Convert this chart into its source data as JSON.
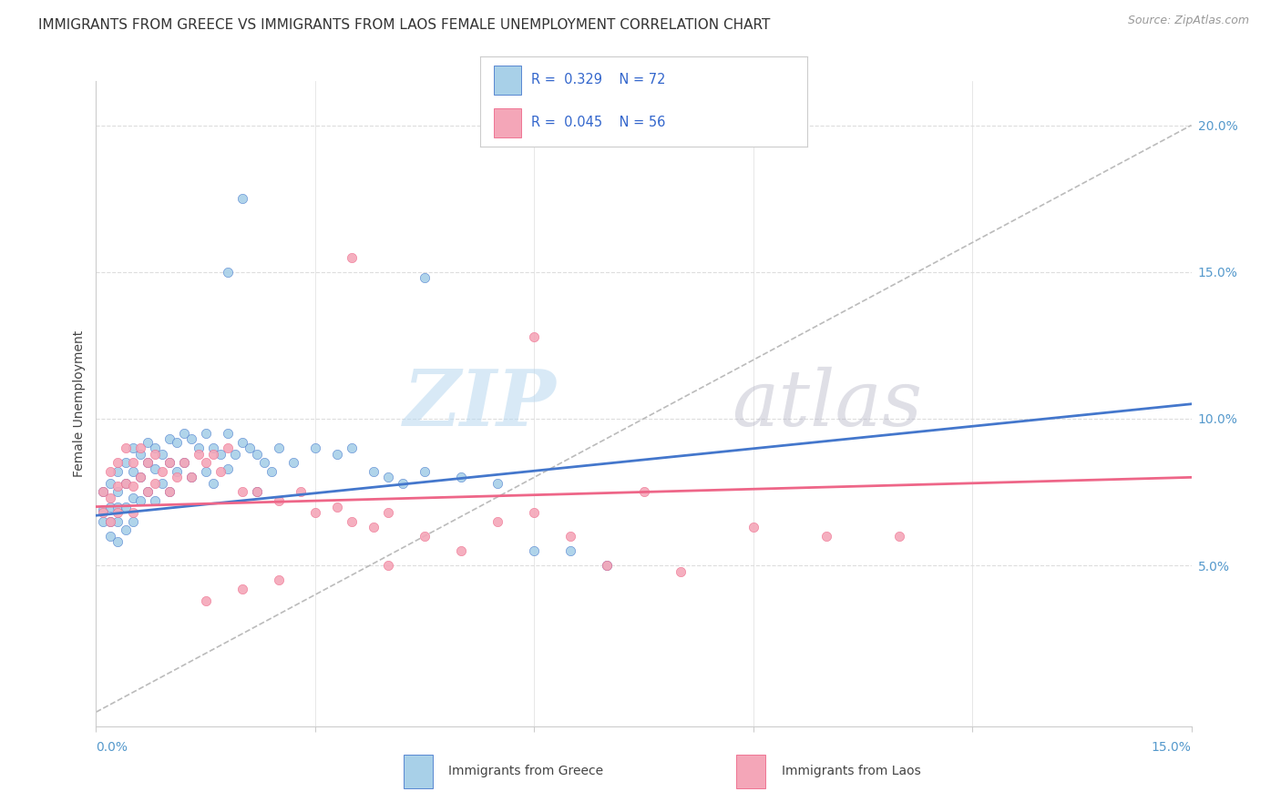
{
  "title": "IMMIGRANTS FROM GREECE VS IMMIGRANTS FROM LAOS FEMALE UNEMPLOYMENT CORRELATION CHART",
  "source": "Source: ZipAtlas.com",
  "ylabel": "Female Unemployment",
  "legend_label1": "Immigrants from Greece",
  "legend_label2": "Immigrants from Laos",
  "color_greece": "#A8D0E8",
  "color_laos": "#F4A6B8",
  "color_greece_line": "#4477CC",
  "color_laos_line": "#EE6688",
  "color_dashed": "#BBBBBB",
  "background_color": "#FFFFFF",
  "grid_color": "#DDDDDD",
  "right_ytick_color": "#5599CC",
  "xlim": [
    0.0,
    0.15
  ],
  "ylim": [
    -0.005,
    0.215
  ],
  "yticks_right": [
    0.05,
    0.1,
    0.15,
    0.2
  ],
  "ytick_labels_right": [
    "5.0%",
    "10.0%",
    "15.0%",
    "20.0%"
  ],
  "greece_scatter_x": [
    0.001,
    0.001,
    0.001,
    0.002,
    0.002,
    0.002,
    0.002,
    0.003,
    0.003,
    0.003,
    0.003,
    0.003,
    0.004,
    0.004,
    0.004,
    0.004,
    0.005,
    0.005,
    0.005,
    0.005,
    0.006,
    0.006,
    0.006,
    0.007,
    0.007,
    0.007,
    0.008,
    0.008,
    0.008,
    0.009,
    0.009,
    0.01,
    0.01,
    0.01,
    0.011,
    0.011,
    0.012,
    0.012,
    0.013,
    0.013,
    0.014,
    0.015,
    0.015,
    0.016,
    0.016,
    0.017,
    0.018,
    0.018,
    0.019,
    0.02,
    0.021,
    0.022,
    0.022,
    0.023,
    0.024,
    0.025,
    0.027,
    0.03,
    0.033,
    0.035,
    0.038,
    0.04,
    0.042,
    0.045,
    0.05,
    0.055,
    0.06,
    0.065,
    0.07,
    0.02,
    0.018,
    0.045
  ],
  "greece_scatter_y": [
    0.075,
    0.069,
    0.065,
    0.078,
    0.07,
    0.065,
    0.06,
    0.082,
    0.075,
    0.07,
    0.065,
    0.058,
    0.085,
    0.078,
    0.07,
    0.062,
    0.09,
    0.082,
    0.073,
    0.065,
    0.088,
    0.08,
    0.072,
    0.092,
    0.085,
    0.075,
    0.09,
    0.083,
    0.072,
    0.088,
    0.078,
    0.093,
    0.085,
    0.075,
    0.092,
    0.082,
    0.095,
    0.085,
    0.093,
    0.08,
    0.09,
    0.095,
    0.082,
    0.09,
    0.078,
    0.088,
    0.095,
    0.083,
    0.088,
    0.092,
    0.09,
    0.088,
    0.075,
    0.085,
    0.082,
    0.09,
    0.085,
    0.09,
    0.088,
    0.09,
    0.082,
    0.08,
    0.078,
    0.082,
    0.08,
    0.078,
    0.055,
    0.055,
    0.05,
    0.175,
    0.15,
    0.148
  ],
  "laos_scatter_x": [
    0.001,
    0.001,
    0.002,
    0.002,
    0.002,
    0.003,
    0.003,
    0.003,
    0.004,
    0.004,
    0.005,
    0.005,
    0.005,
    0.006,
    0.006,
    0.007,
    0.007,
    0.008,
    0.008,
    0.009,
    0.01,
    0.01,
    0.011,
    0.012,
    0.013,
    0.014,
    0.015,
    0.016,
    0.017,
    0.018,
    0.02,
    0.022,
    0.025,
    0.028,
    0.03,
    0.033,
    0.035,
    0.038,
    0.04,
    0.045,
    0.05,
    0.055,
    0.06,
    0.065,
    0.07,
    0.075,
    0.08,
    0.09,
    0.1,
    0.11,
    0.035,
    0.06,
    0.025,
    0.04,
    0.02,
    0.015
  ],
  "laos_scatter_y": [
    0.075,
    0.068,
    0.082,
    0.073,
    0.065,
    0.085,
    0.077,
    0.068,
    0.09,
    0.078,
    0.085,
    0.077,
    0.068,
    0.09,
    0.08,
    0.085,
    0.075,
    0.088,
    0.078,
    0.082,
    0.085,
    0.075,
    0.08,
    0.085,
    0.08,
    0.088,
    0.085,
    0.088,
    0.082,
    0.09,
    0.075,
    0.075,
    0.072,
    0.075,
    0.068,
    0.07,
    0.065,
    0.063,
    0.068,
    0.06,
    0.055,
    0.065,
    0.068,
    0.06,
    0.05,
    0.075,
    0.048,
    0.063,
    0.06,
    0.06,
    0.155,
    0.128,
    0.045,
    0.05,
    0.042,
    0.038
  ],
  "greece_line_x": [
    0.0,
    0.15
  ],
  "greece_line_y": [
    0.067,
    0.105
  ],
  "laos_line_x": [
    0.0,
    0.15
  ],
  "laos_line_y": [
    0.07,
    0.08
  ],
  "diag_line_x": [
    0.0,
    0.15
  ],
  "diag_line_y": [
    0.0,
    0.2
  ]
}
